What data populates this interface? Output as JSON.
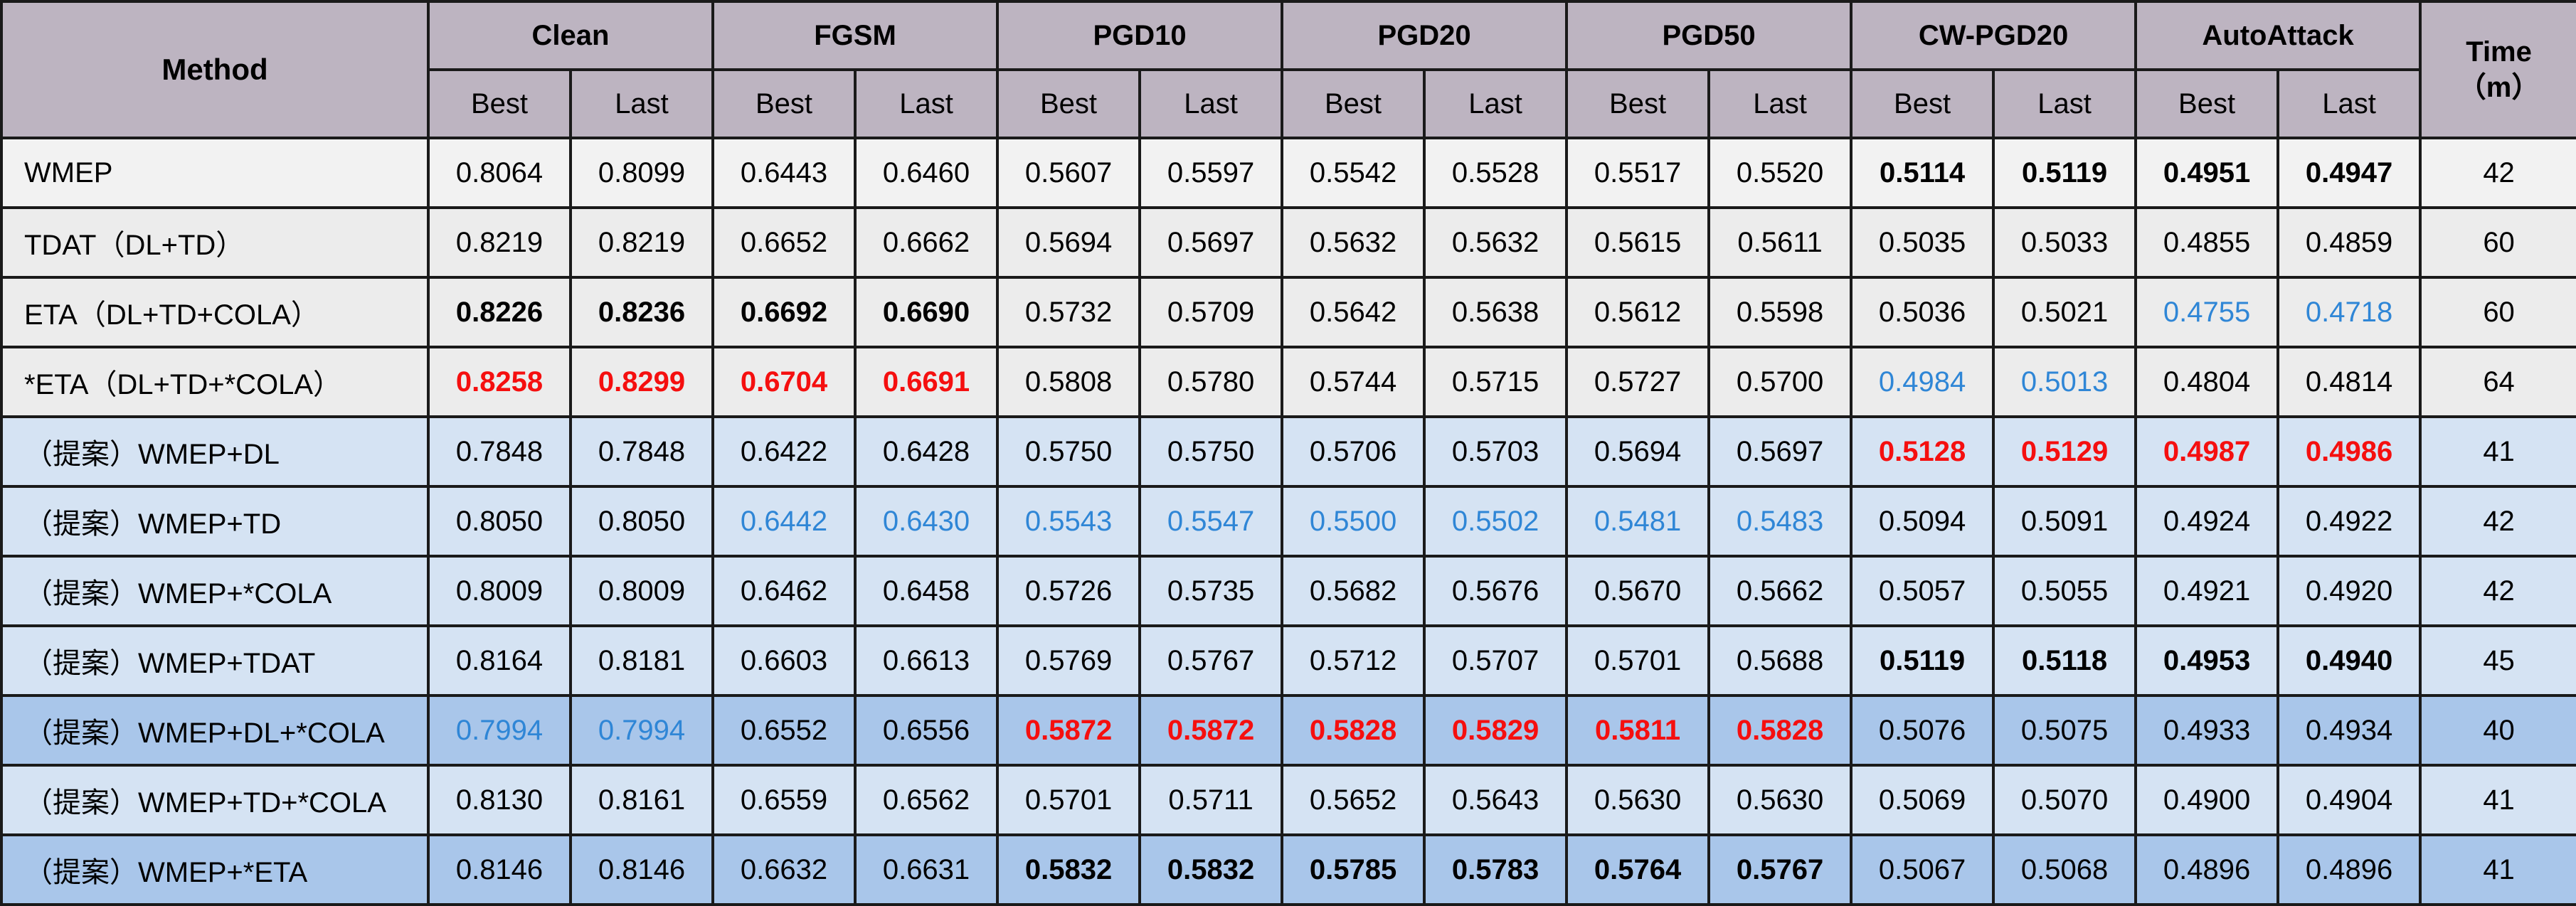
{
  "chart_data": {
    "type": "table",
    "header": {
      "method": "Method",
      "groups": [
        "Clean",
        "FGSM",
        "PGD10",
        "PGD20",
        "PGD50",
        "CW-PGD20",
        "AutoAttack"
      ],
      "sub": [
        "Best",
        "Last"
      ],
      "time_line1": "Time",
      "time_line2": "（m）"
    },
    "rows": [
      {
        "method": "WMEP",
        "group": "base",
        "values": [
          "0.8064",
          "0.8099",
          "0.6443",
          "0.6460",
          "0.5607",
          "0.5597",
          "0.5542",
          "0.5528",
          "0.5517",
          "0.5520",
          "0.5114",
          "0.5119",
          "0.4951",
          "0.4947"
        ],
        "styles": [
          "",
          "",
          "",
          "",
          "",
          "",
          "",
          "",
          "",
          "",
          "b",
          "b",
          "b",
          "b"
        ],
        "time": "42"
      },
      {
        "method": "TDAT（DL+TD）",
        "group": "base",
        "values": [
          "0.8219",
          "0.8219",
          "0.6652",
          "0.6662",
          "0.5694",
          "0.5697",
          "0.5632",
          "0.5632",
          "0.5615",
          "0.5611",
          "0.5035",
          "0.5033",
          "0.4855",
          "0.4859"
        ],
        "styles": [
          "",
          "",
          "",
          "",
          "",
          "",
          "",
          "",
          "",
          "",
          "",
          "",
          "",
          ""
        ],
        "time": "60"
      },
      {
        "method": "ETA（DL+TD+COLA）",
        "group": "base",
        "values": [
          "0.8226",
          "0.8236",
          "0.6692",
          "0.6690",
          "0.5732",
          "0.5709",
          "0.5642",
          "0.5638",
          "0.5612",
          "0.5598",
          "0.5036",
          "0.5021",
          "0.4755",
          "0.4718"
        ],
        "styles": [
          "b",
          "b",
          "b",
          "b",
          "",
          "",
          "",
          "",
          "",
          "",
          "",
          "",
          "blue",
          "blue"
        ],
        "time": "60"
      },
      {
        "method": "*ETA（DL+TD+*COLA）",
        "group": "base",
        "values": [
          "0.8258",
          "0.8299",
          "0.6704",
          "0.6691",
          "0.5808",
          "0.5780",
          "0.5744",
          "0.5715",
          "0.5727",
          "0.5700",
          "0.4984",
          "0.5013",
          "0.4804",
          "0.4814"
        ],
        "styles": [
          "red",
          "red",
          "red",
          "red",
          "",
          "",
          "",
          "",
          "",
          "",
          "blue",
          "blue",
          "",
          ""
        ],
        "time": "64"
      },
      {
        "method": "（提案）WMEP+DL",
        "group": "prop",
        "values": [
          "0.7848",
          "0.7848",
          "0.6422",
          "0.6428",
          "0.5750",
          "0.5750",
          "0.5706",
          "0.5703",
          "0.5694",
          "0.5697",
          "0.5128",
          "0.5129",
          "0.4987",
          "0.4986"
        ],
        "styles": [
          "",
          "",
          "",
          "",
          "",
          "",
          "",
          "",
          "",
          "",
          "red",
          "red",
          "red",
          "red"
        ],
        "time": "41"
      },
      {
        "method": "（提案）WMEP+TD",
        "group": "prop",
        "values": [
          "0.8050",
          "0.8050",
          "0.6442",
          "0.6430",
          "0.5543",
          "0.5547",
          "0.5500",
          "0.5502",
          "0.5481",
          "0.5483",
          "0.5094",
          "0.5091",
          "0.4924",
          "0.4922"
        ],
        "styles": [
          "",
          "",
          "blue",
          "blue",
          "blue",
          "blue",
          "blue",
          "blue",
          "blue",
          "blue",
          "",
          "",
          "",
          ""
        ],
        "time": "42"
      },
      {
        "method": "（提案）WMEP+*COLA",
        "group": "prop",
        "values": [
          "0.8009",
          "0.8009",
          "0.6462",
          "0.6458",
          "0.5726",
          "0.5735",
          "0.5682",
          "0.5676",
          "0.5670",
          "0.5662",
          "0.5057",
          "0.5055",
          "0.4921",
          "0.4920"
        ],
        "styles": [
          "",
          "",
          "",
          "",
          "",
          "",
          "",
          "",
          "",
          "",
          "",
          "",
          "",
          ""
        ],
        "time": "42"
      },
      {
        "method": "（提案）WMEP+TDAT",
        "group": "prop",
        "values": [
          "0.8164",
          "0.8181",
          "0.6603",
          "0.6613",
          "0.5769",
          "0.5767",
          "0.5712",
          "0.5707",
          "0.5701",
          "0.5688",
          "0.5119",
          "0.5118",
          "0.4953",
          "0.4940"
        ],
        "styles": [
          "",
          "",
          "",
          "",
          "",
          "",
          "",
          "",
          "",
          "",
          "b",
          "b",
          "b",
          "b"
        ],
        "time": "45"
      },
      {
        "method": "（提案）WMEP+DL+*COLA",
        "group": "prop-dark",
        "values": [
          "0.7994",
          "0.7994",
          "0.6552",
          "0.6556",
          "0.5872",
          "0.5872",
          "0.5828",
          "0.5829",
          "0.5811",
          "0.5828",
          "0.5076",
          "0.5075",
          "0.4933",
          "0.4934"
        ],
        "styles": [
          "blue",
          "blue",
          "",
          "",
          "red",
          "red",
          "red",
          "red",
          "red",
          "red",
          "",
          "",
          "",
          ""
        ],
        "time": "40"
      },
      {
        "method": "（提案）WMEP+TD+*COLA",
        "group": "prop",
        "values": [
          "0.8130",
          "0.8161",
          "0.6559",
          "0.6562",
          "0.5701",
          "0.5711",
          "0.5652",
          "0.5643",
          "0.5630",
          "0.5630",
          "0.5069",
          "0.5070",
          "0.4900",
          "0.4904"
        ],
        "styles": [
          "",
          "",
          "",
          "",
          "",
          "",
          "",
          "",
          "",
          "",
          "",
          "",
          "",
          ""
        ],
        "time": "41"
      },
      {
        "method": "（提案）WMEP+*ETA",
        "group": "prop-dark",
        "values": [
          "0.8146",
          "0.8146",
          "0.6632",
          "0.6631",
          "0.5832",
          "0.5832",
          "0.5785",
          "0.5783",
          "0.5764",
          "0.5767",
          "0.5067",
          "0.5068",
          "0.4896",
          "0.4896"
        ],
        "styles": [
          "",
          "",
          "",
          "",
          "b",
          "b",
          "b",
          "b",
          "b",
          "b",
          "",
          "",
          "",
          ""
        ],
        "time": "41"
      }
    ]
  }
}
